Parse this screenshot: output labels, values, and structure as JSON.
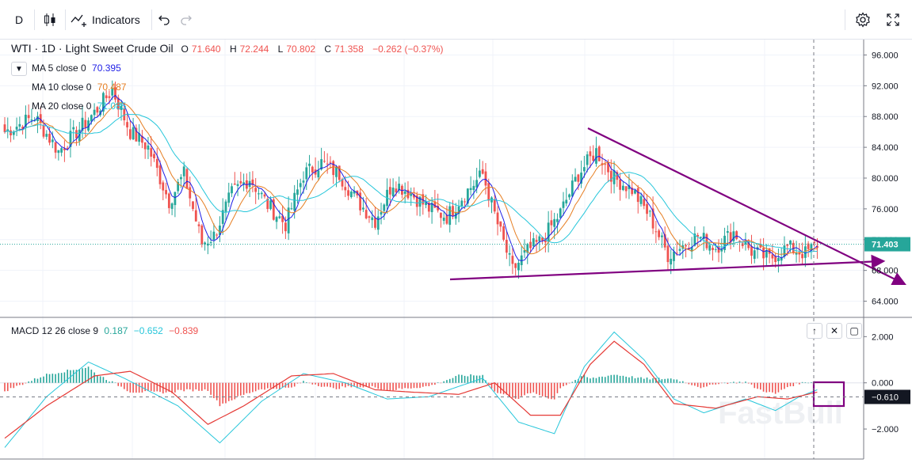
{
  "toolbar": {
    "interval": "D",
    "indicators_label": "Indicators"
  },
  "legend": {
    "symbol": "WTI",
    "interval": "1D",
    "name": "Light Sweet Crude Oil",
    "o_label": "O",
    "o_value": "71.640",
    "h_label": "H",
    "h_value": "72.244",
    "l_label": "L",
    "l_value": "70.802",
    "c_label": "C",
    "c_value": "71.358",
    "change": "−0.262 (−0.37%)"
  },
  "indicators": [
    {
      "label": "MA 5 close 0",
      "value": "70.395",
      "color": "#1e1ee6"
    },
    {
      "label": "MA 10 close 0",
      "value": "70.487",
      "color": "#e67e22"
    },
    {
      "label": "MA 20 close 0",
      "value": "71.085",
      "color": "#26c6da"
    }
  ],
  "macd_legend": {
    "label": "MACD 12 26 close 9",
    "v1": "0.187",
    "c1": "#26a69a",
    "v2": "−0.652",
    "c2": "#26c6da",
    "v3": "−0.839",
    "c3": "#ef5350"
  },
  "price_axis": {
    "ticks": [
      "96.000",
      "92.000",
      "88.000",
      "84.000",
      "80.000",
      "76.000",
      "72.000",
      "68.000",
      "64.000"
    ],
    "last_label": "71.403"
  },
  "macd_axis": {
    "ticks": [
      "2.000",
      "0.000",
      "−2.000"
    ],
    "last_label": "−0.610"
  },
  "colors": {
    "up": "#26a69a",
    "down": "#ef5350",
    "trendline": "#800080",
    "ma5": "#1e1ee6",
    "ma10": "#e67e22",
    "ma20": "#26c6da",
    "macd_line": "#26c6da",
    "signal_line": "#e53935"
  },
  "watermark": "FastBull",
  "chart_data": {
    "type": "candlestick",
    "title": "WTI · 1D · Light Sweet Crude Oil",
    "price_range": [
      62,
      98
    ],
    "macd_range": [
      -3.3,
      2.8
    ],
    "price_ticks": [
      96,
      92,
      88,
      84,
      80,
      76,
      72,
      68,
      64
    ],
    "macd_ticks": [
      2,
      0,
      -2
    ],
    "last_price": 71.403,
    "last_macd": -0.61,
    "price_anchors": [
      [
        0,
        86.0
      ],
      [
        10,
        88.0
      ],
      [
        18,
        83.5
      ],
      [
        24,
        86.0
      ],
      [
        30,
        88.5
      ],
      [
        36,
        91.5
      ],
      [
        42,
        86.0
      ],
      [
        48,
        84.0
      ],
      [
        55,
        77.0
      ],
      [
        60,
        80.5
      ],
      [
        66,
        71.5
      ],
      [
        70,
        72.5
      ],
      [
        76,
        78.0
      ],
      [
        82,
        80.0
      ],
      [
        88,
        76.5
      ],
      [
        94,
        74.0
      ],
      [
        100,
        80.5
      ],
      [
        106,
        82.0
      ],
      [
        112,
        80.5
      ],
      [
        118,
        77.0
      ],
      [
        124,
        74.5
      ],
      [
        130,
        79.5
      ],
      [
        136,
        78.0
      ],
      [
        142,
        76.0
      ],
      [
        148,
        75.0
      ],
      [
        154,
        78.0
      ],
      [
        160,
        80.5
      ],
      [
        165,
        74.0
      ],
      [
        170,
        68.0
      ],
      [
        175,
        70.5
      ],
      [
        180,
        72.0
      ],
      [
        186,
        75.5
      ],
      [
        192,
        80.5
      ],
      [
        198,
        83.5
      ],
      [
        204,
        80.0
      ],
      [
        210,
        78.5
      ],
      [
        216,
        75.0
      ],
      [
        222,
        70.0
      ],
      [
        226,
        71.0
      ],
      [
        232,
        72.5
      ],
      [
        238,
        71.0
      ],
      [
        244,
        73.0
      ],
      [
        250,
        70.5
      ],
      [
        256,
        69.5
      ],
      [
        262,
        71.0
      ],
      [
        268,
        70.2
      ],
      [
        272,
        71.4
      ]
    ],
    "macd_anchors": [
      [
        0,
        -2.4
      ],
      [
        14,
        -1.0
      ],
      [
        30,
        0.3
      ],
      [
        42,
        0.5
      ],
      [
        56,
        -0.4
      ],
      [
        68,
        -1.8
      ],
      [
        80,
        -1.0
      ],
      [
        96,
        0.3
      ],
      [
        110,
        0.4
      ],
      [
        124,
        -0.3
      ],
      [
        136,
        -0.4
      ],
      [
        152,
        -0.5
      ],
      [
        164,
        0.0
      ],
      [
        176,
        -1.4
      ],
      [
        186,
        -1.4
      ],
      [
        196,
        0.8
      ],
      [
        204,
        1.8
      ],
      [
        214,
        0.8
      ],
      [
        224,
        -0.9
      ],
      [
        238,
        -1.1
      ],
      [
        252,
        -0.6
      ],
      [
        262,
        -0.7
      ],
      [
        272,
        -0.4
      ]
    ],
    "macd_line_anchors": [
      [
        0,
        -2.8
      ],
      [
        14,
        -0.6
      ],
      [
        28,
        0.9
      ],
      [
        40,
        0.2
      ],
      [
        58,
        -1.0
      ],
      [
        72,
        -2.6
      ],
      [
        86,
        -0.8
      ],
      [
        100,
        0.4
      ],
      [
        114,
        0.0
      ],
      [
        128,
        -0.7
      ],
      [
        142,
        -0.6
      ],
      [
        160,
        0.2
      ],
      [
        172,
        -1.7
      ],
      [
        184,
        -2.2
      ],
      [
        194,
        0.7
      ],
      [
        204,
        2.2
      ],
      [
        214,
        1.0
      ],
      [
        224,
        -0.7
      ],
      [
        234,
        -1.3
      ],
      [
        248,
        -0.7
      ],
      [
        258,
        -1.2
      ],
      [
        266,
        -0.6
      ],
      [
        272,
        -0.3
      ]
    ],
    "candles_count": 273
  }
}
